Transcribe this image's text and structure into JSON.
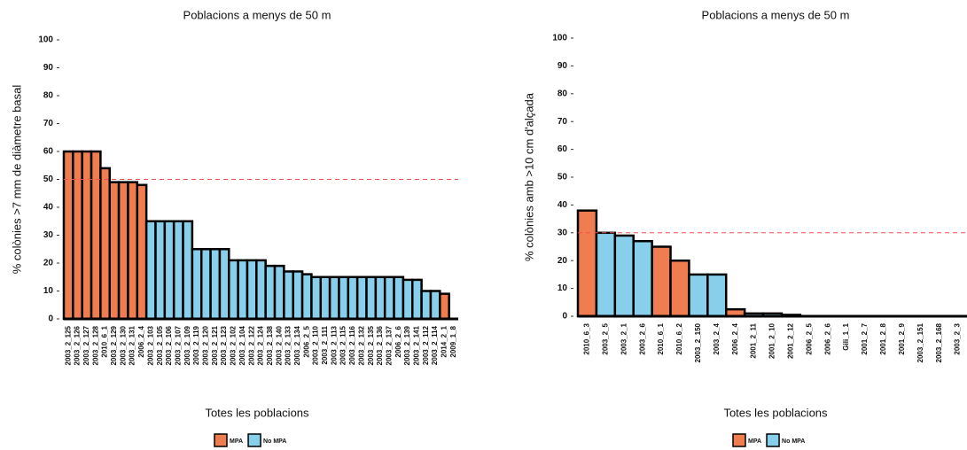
{
  "chart_data": [
    {
      "type": "bar",
      "title": "Poblacions a menys de 50 m",
      "xlabel": "Totes les poblacions",
      "ylabel": "% colònies >7 mm de diàmetre basal",
      "categories": [
        "2003_2_125",
        "2003_2_126",
        "2003_2_127",
        "2003_2_128",
        "2010_6_1",
        "2003_2_129",
        "2003_2_130",
        "2003_2_131",
        "2006_2_4",
        "2003_2_103",
        "2003_2_105",
        "2003_2_106",
        "2003_2_107",
        "2003_2_109",
        "2003_2_119",
        "2003_2_120",
        "2003_2_121",
        "2003_2_123",
        "2003_2_102",
        "2003_2_104",
        "2003_2_122",
        "2003_2_124",
        "2003_2_138",
        "2003_2_140",
        "2003_2_133",
        "2003_2_134",
        "2006_2_5",
        "2003_2_110",
        "2003_2_111",
        "2003_2_113",
        "2003_2_115",
        "2003_2_116",
        "2003_2_132",
        "2003_2_135",
        "2003_2_136",
        "2003_2_137",
        "2006_2_6",
        "2003_2_139",
        "2003_2_141",
        "2003_2_112",
        "2003_2_114",
        "2014_2_1",
        "2009_1_8"
      ],
      "series": [
        {
          "name": "MPA",
          "color": "#f07d4f",
          "values": [
            60,
            60,
            60,
            60,
            54,
            49,
            49,
            49,
            48,
            null,
            null,
            null,
            null,
            null,
            null,
            null,
            null,
            null,
            null,
            null,
            null,
            null,
            null,
            null,
            null,
            null,
            null,
            null,
            null,
            null,
            null,
            null,
            null,
            null,
            null,
            null,
            null,
            null,
            null,
            null,
            null,
            9,
            0
          ]
        },
        {
          "name": "No MPA",
          "color": "#87cfea",
          "values": [
            null,
            null,
            null,
            null,
            null,
            null,
            null,
            null,
            null,
            35,
            35,
            35,
            35,
            35,
            25,
            25,
            25,
            25,
            21,
            21,
            21,
            21,
            19,
            19,
            17,
            17,
            16,
            15,
            15,
            15,
            15,
            15,
            15,
            15,
            15,
            15,
            15,
            14,
            14,
            10,
            10,
            null,
            null
          ]
        }
      ],
      "ylim": [
        0,
        100
      ],
      "yticks": [
        0,
        10,
        20,
        30,
        40,
        50,
        60,
        70,
        80,
        90,
        100
      ],
      "hline": 50
    },
    {
      "type": "bar",
      "title": "Poblacions a menys de 50 m",
      "xlabel": "Totes les poblacions",
      "ylabel": "% colònies amb >10 cm d'alçada",
      "categories": [
        "2010_6_3",
        "2003_2_5",
        "2003_2_1",
        "2003_2_6",
        "2010_6_1",
        "2010_6_2",
        "2003_2_150",
        "2003_2_4",
        "2006_2_4",
        "2001_2_11",
        "2001_2_10",
        "2001_2_12",
        "2006_2_5",
        "2006_2_6",
        "Gili_1_1",
        "2001_2_7",
        "2001_2_8",
        "2001_2_9",
        "2003_2_151",
        "2003_2_168",
        "2003_2_3"
      ],
      "series": [
        {
          "name": "MPA",
          "color": "#f07d4f",
          "values": [
            38,
            null,
            null,
            null,
            25,
            20,
            null,
            null,
            2.5,
            null,
            null,
            null,
            null,
            null,
            null,
            null,
            null,
            null,
            null,
            null,
            null
          ]
        },
        {
          "name": "No MPA",
          "color": "#87cfea",
          "values": [
            null,
            30,
            29,
            27,
            null,
            null,
            15,
            15,
            null,
            1,
            1,
            0.5,
            0,
            0,
            0,
            0,
            0,
            0,
            0,
            0,
            0
          ]
        }
      ],
      "ylim": [
        0,
        100
      ],
      "yticks": [
        0,
        10,
        20,
        30,
        40,
        50,
        60,
        70,
        80,
        90,
        100
      ],
      "hline": 30
    }
  ]
}
